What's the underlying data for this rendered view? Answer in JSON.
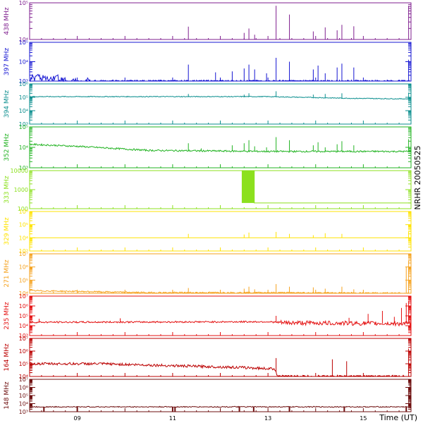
{
  "chart_data": {
    "type": "line",
    "side_title": "NRHR 20050525",
    "xlabel": "Time (UT)",
    "x_range": [
      8.0,
      16.0
    ],
    "x_ticks": [
      {
        "value": 9,
        "label": "09"
      },
      {
        "value": 11,
        "label": "11"
      },
      {
        "value": 13,
        "label": "13"
      },
      {
        "value": 15,
        "label": "15"
      }
    ],
    "panels": [
      {
        "name": "438 MHz",
        "color": "#7f1f8f",
        "ylim_exp": [
          4,
          5
        ],
        "y_tick_labels": [
          "10⁴",
          "10⁵"
        ],
        "baseline": 4.0,
        "noise": 0.0,
        "spikes": [
          [
            11.33,
            4.35
          ],
          [
            12.5,
            4.18
          ],
          [
            12.6,
            4.3
          ],
          [
            12.72,
            4.13
          ],
          [
            13.17,
            4.92
          ],
          [
            13.45,
            4.68
          ],
          [
            13.95,
            4.22
          ],
          [
            14.2,
            4.33
          ],
          [
            14.45,
            4.25
          ],
          [
            14.55,
            4.4
          ],
          [
            14.8,
            4.36
          ],
          [
            15.95,
            4.92
          ]
        ]
      },
      {
        "name": "397 MHz",
        "color": "#1414d2",
        "ylim_exp": [
          3,
          5
        ],
        "y_tick_labels": [
          "10³",
          "10⁴",
          "10⁵"
        ],
        "baseline": 3.0,
        "noise": 0.05,
        "burst": [
          [
            8.0,
            8.6,
            3.3
          ],
          [
            8.6,
            8.75,
            3.2
          ],
          [
            8.9,
            9.0,
            3.15
          ],
          [
            9.15,
            9.3,
            3.1
          ]
        ],
        "spikes": [
          [
            11.33,
            3.85
          ],
          [
            11.9,
            3.45
          ],
          [
            12.25,
            3.5
          ],
          [
            12.5,
            3.65
          ],
          [
            12.6,
            3.85
          ],
          [
            12.72,
            3.6
          ],
          [
            12.97,
            3.4
          ],
          [
            13.17,
            4.2
          ],
          [
            13.45,
            4.0
          ],
          [
            13.95,
            3.6
          ],
          [
            14.05,
            3.8
          ],
          [
            14.2,
            3.4
          ],
          [
            14.45,
            3.7
          ],
          [
            14.55,
            3.9
          ],
          [
            14.8,
            3.7
          ],
          [
            15.95,
            4.1
          ]
        ]
      },
      {
        "name": "394 MHz",
        "color": "#0a8e8e",
        "ylim_exp": [
          3,
          6
        ],
        "y_tick_labels": [
          "10³",
          "10⁴",
          "10⁵",
          "10⁶"
        ],
        "baseline": 5.05,
        "noise": 0.03,
        "trend": [
          [
            8.0,
            5.05
          ],
          [
            13.0,
            5.05
          ],
          [
            14.8,
            4.92
          ],
          [
            16.0,
            4.88
          ]
        ],
        "spikes": [
          [
            11.33,
            5.25
          ],
          [
            12.5,
            5.2
          ],
          [
            12.6,
            5.3
          ],
          [
            13.17,
            5.45
          ],
          [
            13.95,
            5.2
          ],
          [
            14.2,
            5.25
          ],
          [
            14.55,
            5.3
          ],
          [
            15.95,
            5.35
          ]
        ]
      },
      {
        "name": "352 MHz",
        "color": "#22b322",
        "ylim_exp": [
          3,
          5
        ],
        "y_tick_labels": [
          "10³",
          "10⁴",
          "10⁵"
        ],
        "baseline": 4.0,
        "noise": 0.04,
        "trend": [
          [
            8.0,
            4.15
          ],
          [
            9.0,
            4.05
          ],
          [
            10.5,
            3.85
          ],
          [
            13.0,
            3.8
          ],
          [
            16.0,
            3.8
          ]
        ],
        "spikes": [
          [
            11.33,
            4.2
          ],
          [
            11.6,
            3.95
          ],
          [
            12.25,
            4.1
          ],
          [
            12.5,
            4.2
          ],
          [
            12.6,
            4.35
          ],
          [
            12.72,
            4.05
          ],
          [
            12.97,
            4.0
          ],
          [
            13.17,
            4.5
          ],
          [
            13.45,
            4.35
          ],
          [
            13.95,
            4.1
          ],
          [
            14.05,
            4.25
          ],
          [
            14.2,
            4.0
          ],
          [
            14.45,
            4.15
          ],
          [
            14.55,
            4.3
          ],
          [
            14.8,
            4.1
          ],
          [
            15.95,
            4.4
          ]
        ]
      },
      {
        "name": "333 MHz",
        "color": "#8ce01e",
        "ylim_exp": [
          2,
          4
        ],
        "y_tick_labels": [
          "100",
          "1000",
          "10000"
        ],
        "baseline": 4.0,
        "noise": 0.0,
        "step": {
          "x": 12.7,
          "before": 4.0,
          "after": 2.3,
          "band": [
            12.45,
            12.72
          ]
        },
        "spikes": []
      },
      {
        "name": "329 MHz",
        "color": "#ffe300",
        "ylim_exp": [
          3,
          6
        ],
        "y_tick_labels": [
          "10³",
          "10⁴",
          "10⁵",
          "10⁶"
        ],
        "baseline": 4.0,
        "noise": 0.0,
        "spikes": [
          [
            11.33,
            4.3
          ],
          [
            12.5,
            4.25
          ],
          [
            12.6,
            4.4
          ],
          [
            13.17,
            4.45
          ],
          [
            13.45,
            4.3
          ],
          [
            13.95,
            4.2
          ],
          [
            14.2,
            4.35
          ],
          [
            14.55,
            4.3
          ],
          [
            15.95,
            4.5
          ]
        ]
      },
      {
        "name": "271 MHz",
        "color": "#f5a21e",
        "ylim_exp": [
          4,
          7
        ],
        "y_tick_labels": [
          "10⁴",
          "10⁵",
          "10⁶",
          "10⁷"
        ],
        "baseline": 4.2,
        "noise": 0.05,
        "trend": [
          [
            8.0,
            4.2
          ],
          [
            10.5,
            4.05
          ],
          [
            13.0,
            4.05
          ],
          [
            16.0,
            4.0
          ]
        ],
        "spikes": [
          [
            11.33,
            4.4
          ],
          [
            12.5,
            4.35
          ],
          [
            12.6,
            4.5
          ],
          [
            12.72,
            4.3
          ],
          [
            13.17,
            4.7
          ],
          [
            13.45,
            4.5
          ],
          [
            13.95,
            4.45
          ],
          [
            14.2,
            4.35
          ],
          [
            14.55,
            4.5
          ],
          [
            14.8,
            4.3
          ],
          [
            15.9,
            6.0
          ],
          [
            15.95,
            6.5
          ]
        ]
      },
      {
        "name": "235 MHz",
        "color": "#e41010",
        "ylim_exp": [
          3,
          7
        ],
        "y_tick_labels": [
          "10³",
          "10⁴",
          "10⁵",
          "10⁶",
          "10⁷"
        ],
        "baseline": 4.35,
        "noise": 0.08,
        "trend": [
          [
            8.0,
            4.35
          ],
          [
            13.0,
            4.4
          ],
          [
            13.3,
            4.3
          ],
          [
            16.0,
            4.2
          ]
        ],
        "noisy_from": 13.2,
        "spikes": [
          [
            8.2,
            4.7
          ],
          [
            9.9,
            4.75
          ],
          [
            13.17,
            5.0
          ],
          [
            14.7,
            4.8
          ],
          [
            15.1,
            5.2
          ],
          [
            15.4,
            5.5
          ],
          [
            15.65,
            4.9
          ],
          [
            15.8,
            5.8
          ],
          [
            15.9,
            6.3
          ],
          [
            15.95,
            6.5
          ]
        ]
      },
      {
        "name": "164 MHz",
        "color": "#bb0000",
        "ylim_exp": [
          4,
          7
        ],
        "y_tick_labels": [
          "10⁴",
          "10⁵",
          "10⁶",
          "10⁷"
        ],
        "baseline": 4.95,
        "noise": 0.1,
        "trend": [
          [
            8.0,
            5.0
          ],
          [
            9.5,
            5.0
          ],
          [
            11.0,
            4.85
          ],
          [
            12.5,
            4.7
          ],
          [
            13.15,
            4.6
          ],
          [
            13.2,
            4.0
          ],
          [
            16.0,
            4.0
          ]
        ],
        "spikes": [
          [
            13.17,
            5.45
          ],
          [
            14.35,
            5.35
          ],
          [
            14.65,
            5.2
          ],
          [
            15.95,
            6.2
          ]
        ]
      },
      {
        "name": "148 MHz",
        "color": "#6e0f0f",
        "ylim_exp": [
          3,
          7
        ],
        "y_tick_labels": [
          "10³",
          "10⁴",
          "10⁵",
          "10⁶",
          "10⁷"
        ],
        "baseline": 3.6,
        "noise": 0.06,
        "dips": [
          8.3,
          9.0,
          11.0,
          11.05,
          12.4,
          12.7,
          13.45,
          14.6,
          15.9
        ],
        "spikes": [
          [
            15.95,
            6.0
          ],
          [
            15.98,
            6.6
          ]
        ]
      }
    ]
  }
}
